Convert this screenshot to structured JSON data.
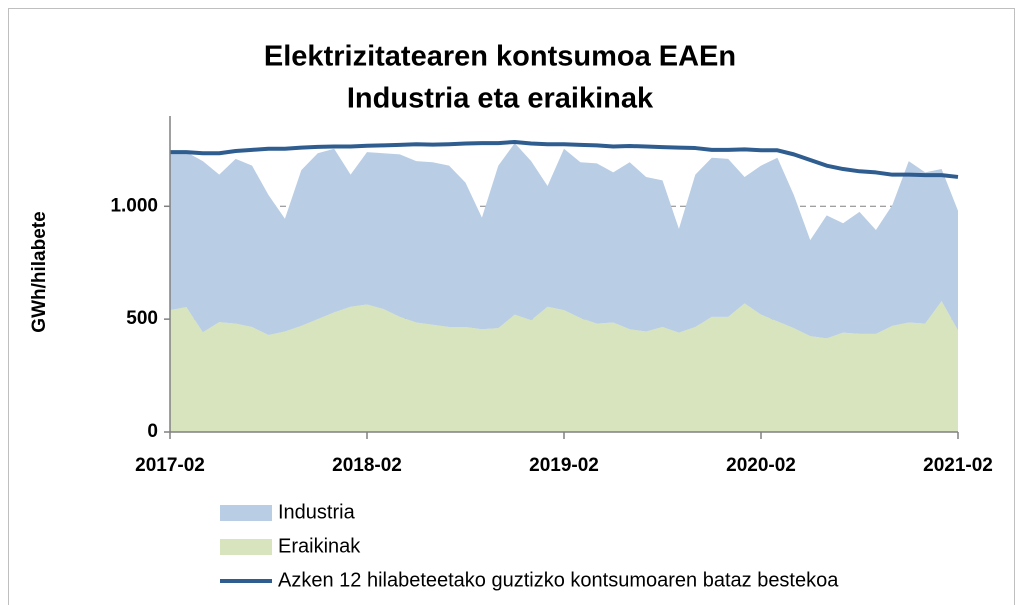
{
  "chart_data": {
    "type": "area",
    "title": [
      "Elektrizitatearen kontsumoa EAEn",
      "Industria eta eraikinak"
    ],
    "y_label": "GWh/hilabete",
    "categories": [
      "2017-02",
      null,
      null,
      null,
      null,
      null,
      null,
      null,
      null,
      null,
      null,
      null,
      "2018-02",
      null,
      null,
      null,
      null,
      null,
      null,
      null,
      null,
      null,
      null,
      null,
      "2019-02",
      null,
      null,
      null,
      null,
      null,
      null,
      null,
      null,
      null,
      null,
      null,
      "2020-02",
      null,
      null,
      null,
      null,
      null,
      null,
      null,
      null,
      null,
      null,
      null,
      "2021-02"
    ],
    "ylim": [
      0,
      1400
    ],
    "yticks": [
      0,
      500,
      {
        "value": 1000,
        "label": "1.000"
      }
    ],
    "grid": true,
    "stacked": true,
    "series": [
      {
        "name": "Industria",
        "kind": "area",
        "color": "#b9cde5",
        "values": [
          700,
          687,
          758,
          653,
          730,
          715,
          620,
          500,
          690,
          735,
          725,
          585,
          675,
          690,
          720,
          715,
          720,
          715,
          640,
          495,
          720,
          760,
          705,
          535,
          715,
          690,
          710,
          665,
          740,
          685,
          650,
          460,
          675,
          705,
          700,
          560,
          660,
          725,
          590,
          425,
          545,
          485,
          540,
          460,
          535,
          715,
          670,
          585,
          530
        ]
      },
      {
        "name": "Eraikinak",
        "kind": "area",
        "color": "#d7e4bd",
        "values": [
          540,
          553,
          442,
          487,
          480,
          465,
          430,
          445,
          470,
          500,
          530,
          555,
          565,
          545,
          510,
          485,
          475,
          465,
          465,
          455,
          460,
          520,
          495,
          555,
          540,
          505,
          480,
          485,
          455,
          445,
          465,
          440,
          465,
          510,
          510,
          570,
          520,
          490,
          460,
          425,
          415,
          440,
          435,
          435,
          470,
          485,
          480,
          580,
          450
        ]
      },
      {
        "name": "Azken 12 hilabeteetako guztizko kontsumoaren bataz bestekoa",
        "kind": "line",
        "color": "#2f5d8f",
        "values": [
          1240,
          1240,
          1235,
          1235,
          1245,
          1250,
          1255,
          1255,
          1260,
          1263,
          1265,
          1265,
          1268,
          1270,
          1272,
          1275,
          1273,
          1275,
          1278,
          1280,
          1280,
          1285,
          1278,
          1275,
          1275,
          1272,
          1270,
          1265,
          1267,
          1265,
          1262,
          1260,
          1258,
          1250,
          1250,
          1252,
          1248,
          1248,
          1230,
          1205,
          1180,
          1165,
          1155,
          1150,
          1140,
          1140,
          1138,
          1138,
          1130
        ]
      }
    ]
  }
}
